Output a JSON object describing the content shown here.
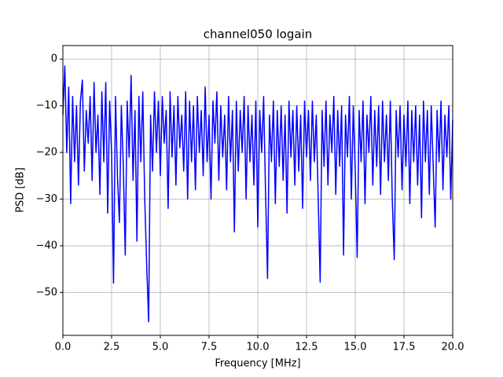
{
  "chart_data": {
    "type": "line",
    "title": "channel050 logain",
    "xlabel": "Frequency [MHz]",
    "ylabel": "PSD [dB]",
    "xlim": [
      0,
      20
    ],
    "ylim": [
      -59.2,
      2.9
    ],
    "xticks": [
      {
        "value": 0,
        "label": "0.0"
      },
      2.5,
      {
        "value": 5,
        "label": "5.0"
      },
      7.5,
      {
        "value": 10,
        "label": "10.0"
      },
      12.5,
      {
        "value": 15,
        "label": "15.0"
      },
      17.5,
      {
        "value": 20,
        "label": "20.0"
      }
    ],
    "yticks": [
      0,
      {
        "value": -10,
        "label": "−10"
      },
      {
        "value": -20,
        "label": "−20"
      },
      {
        "value": -30,
        "label": "−30"
      },
      {
        "value": -40,
        "label": "−40"
      },
      {
        "value": -50,
        "label": "−50"
      }
    ],
    "grid": true,
    "series": [
      {
        "color": "#0000ff",
        "x": [
          0,
          0.1,
          0.2,
          0.3,
          0.4,
          0.5,
          0.6,
          0.7,
          0.8,
          0.9,
          1,
          1.1,
          1.2,
          1.3,
          1.4,
          1.5,
          1.6,
          1.7,
          1.8,
          1.9,
          2,
          2.1,
          2.2,
          2.3,
          2.4,
          2.5,
          2.6,
          2.7,
          2.8,
          2.9,
          3,
          3.1,
          3.2,
          3.3,
          3.4,
          3.5,
          3.6,
          3.7,
          3.8,
          3.9,
          4,
          4.1,
          4.2,
          4.3,
          4.4,
          4.5,
          4.6,
          4.7,
          4.8,
          4.9,
          5,
          5.1,
          5.2,
          5.3,
          5.4,
          5.5,
          5.6,
          5.7,
          5.8,
          5.9,
          6,
          6.1,
          6.2,
          6.3,
          6.4,
          6.5,
          6.6,
          6.7,
          6.8,
          6.9,
          7,
          7.1,
          7.2,
          7.3,
          7.4,
          7.5,
          7.6,
          7.7,
          7.8,
          7.9,
          8,
          8.1,
          8.2,
          8.3,
          8.4,
          8.5,
          8.6,
          8.7,
          8.8,
          8.9,
          9,
          9.1,
          9.2,
          9.3,
          9.4,
          9.5,
          9.6,
          9.7,
          9.8,
          9.9,
          10,
          10.1,
          10.2,
          10.3,
          10.4,
          10.5,
          10.6,
          10.7,
          10.8,
          10.9,
          11,
          11.1,
          11.2,
          11.3,
          11.4,
          11.5,
          11.6,
          11.7,
          11.8,
          11.9,
          12,
          12.1,
          12.2,
          12.3,
          12.4,
          12.5,
          12.6,
          12.7,
          12.8,
          12.9,
          13,
          13.1,
          13.2,
          13.3,
          13.4,
          13.5,
          13.6,
          13.7,
          13.8,
          13.9,
          14,
          14.1,
          14.2,
          14.3,
          14.4,
          14.5,
          14.6,
          14.7,
          14.8,
          14.9,
          15,
          15.1,
          15.2,
          15.3,
          15.4,
          15.5,
          15.6,
          15.7,
          15.8,
          15.9,
          16,
          16.1,
          16.2,
          16.3,
          16.4,
          16.5,
          16.6,
          16.7,
          16.8,
          16.9,
          17,
          17.1,
          17.2,
          17.3,
          17.4,
          17.5,
          17.6,
          17.7,
          17.8,
          17.9,
          18,
          18.1,
          18.2,
          18.3,
          18.4,
          18.5,
          18.6,
          18.7,
          18.8,
          18.9,
          19,
          19.1,
          19.2,
          19.3,
          19.4,
          19.5,
          19.6,
          19.7,
          19.8,
          19.9,
          20
        ],
        "values": [
          -12,
          -1.5,
          -20,
          -6,
          -31,
          -8,
          -22,
          -10,
          -27,
          -9,
          -4.5,
          -24,
          -11,
          -18,
          -8,
          -26,
          -5,
          -20,
          -12,
          -29,
          -7,
          -22,
          -5,
          -33,
          -9,
          -20,
          -48,
          -8,
          -25,
          -35,
          -10,
          -23,
          -42,
          -9,
          -21,
          -3.5,
          -26,
          -11,
          -39,
          -8,
          -22,
          -7,
          -30,
          -44,
          -56.3,
          -12,
          -24,
          -7,
          -20,
          -9,
          -25,
          -8,
          -18,
          -11,
          -32,
          -7,
          -21,
          -10,
          -27,
          -8,
          -19,
          -12,
          -24,
          -7,
          -30,
          -9,
          -22,
          -10,
          -28,
          -8,
          -20,
          -11,
          -25,
          -6,
          -22,
          -12,
          -30,
          -9,
          -18,
          -7,
          -26,
          -10,
          -21,
          -12,
          -28,
          -8,
          -22,
          -11,
          -37,
          -9,
          -24,
          -11,
          -20,
          -8,
          -30,
          -10,
          -22,
          -12,
          -27,
          -9,
          -36,
          -11,
          -20,
          -8,
          -29,
          -47,
          -12,
          -22,
          -9,
          -31,
          -11,
          -23,
          -10,
          -26,
          -12,
          -33,
          -9,
          -21,
          -11,
          -27,
          -10,
          -24,
          -12,
          -32,
          -9,
          -21,
          -11,
          -26,
          -9,
          -22,
          -12,
          -30,
          -47.8,
          -11,
          -23,
          -9,
          -27,
          -12,
          -20,
          -8,
          -29,
          -11,
          -23,
          -10,
          -42,
          -12,
          -21,
          -8,
          -30,
          -10,
          -24,
          -42.5,
          -11,
          -22,
          -9,
          -31,
          -12,
          -20,
          -8,
          -27,
          -11,
          -23,
          -10,
          -29,
          -9,
          -22,
          -12,
          -26,
          -9,
          -30,
          -43,
          -11,
          -21,
          -10,
          -28,
          -12,
          -23,
          -9,
          -31,
          -11,
          -22,
          -10,
          -27,
          -12,
          -34,
          -9,
          -22,
          -11,
          -29,
          -10,
          -23,
          -36,
          -11,
          -22,
          -9,
          -28,
          -12,
          -21,
          -10,
          -30,
          -13
        ]
      }
    ]
  }
}
